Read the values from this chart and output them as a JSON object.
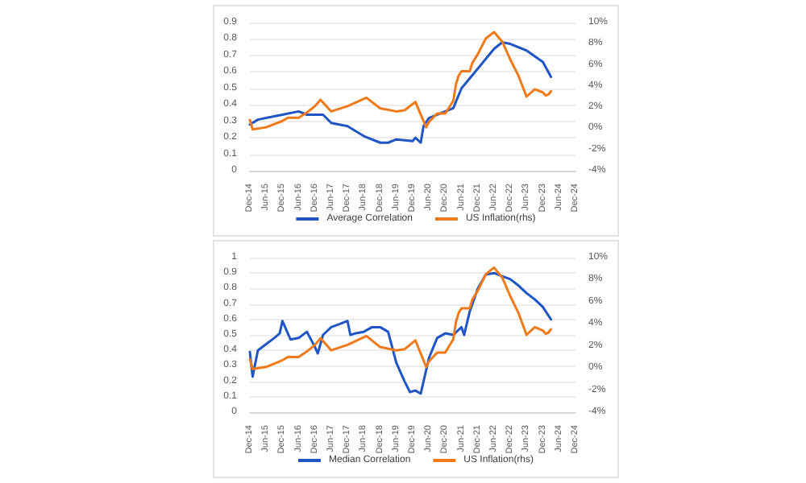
{
  "chart_data": [
    {
      "type": "line",
      "xlim": [
        "2014-12",
        "2024-12"
      ],
      "xticks": [
        {
          "value": "2014-12",
          "label": "Dec-14"
        },
        {
          "value": "2015-06",
          "label": "Jun-15"
        },
        {
          "value": "2015-12",
          "label": "Dec-15"
        },
        {
          "value": "2016-06",
          "label": "Jun-16"
        },
        {
          "value": "2016-12",
          "label": "Dec-16"
        },
        {
          "value": "2017-06",
          "label": "Jun-17"
        },
        {
          "value": "2017-12",
          "label": "Dec-17"
        },
        {
          "value": "2018-06",
          "label": "Jun-18"
        },
        {
          "value": "2018-12",
          "label": "Dec-18"
        },
        {
          "value": "2019-06",
          "label": "Jun-19"
        },
        {
          "value": "2019-12",
          "label": "Dec-19"
        },
        {
          "value": "2020-06",
          "label": "Jun-20"
        },
        {
          "value": "2020-12",
          "label": "Dec-20"
        },
        {
          "value": "2021-06",
          "label": "Jun-21"
        },
        {
          "value": "2021-12",
          "label": "Dec-21"
        },
        {
          "value": "2022-06",
          "label": "Jun-22"
        },
        {
          "value": "2022-12",
          "label": "Dec-22"
        },
        {
          "value": "2023-06",
          "label": "Jun-23"
        },
        {
          "value": "2023-12",
          "label": "Dec-23"
        },
        {
          "value": "2024-06",
          "label": "Jun-24"
        },
        {
          "value": "2024-12",
          "label": "Dec-24"
        }
      ],
      "ylim": [
        0,
        0.9
      ],
      "yticks": [
        0,
        0.1,
        0.2,
        0.3,
        0.4,
        0.5,
        0.6,
        0.7,
        0.8,
        0.9
      ],
      "y2lim": [
        -4,
        10
      ],
      "y2ticks": [
        {
          "value": -4,
          "label": "-4%"
        },
        {
          "value": -2,
          "label": "-2%"
        },
        {
          "value": 0,
          "label": "0%"
        },
        {
          "value": 2,
          "label": "2%"
        },
        {
          "value": 4,
          "label": "4%"
        },
        {
          "value": 6,
          "label": "6%"
        },
        {
          "value": 8,
          "label": "8%"
        },
        {
          "value": 10,
          "label": "10%"
        }
      ],
      "grid": "y",
      "legend": "bottom",
      "marker": "none",
      "line_style": "solid",
      "series": [
        {
          "name": "Average Correlation",
          "color": "#1f55c4",
          "x": [
            "2014-12",
            "2015-03",
            "2015-06",
            "2015-12",
            "2016-06",
            "2016-09",
            "2016-12",
            "2017-03",
            "2017-06",
            "2017-12",
            "2018-06",
            "2018-12",
            "2019-03",
            "2019-06",
            "2019-12",
            "2020-01",
            "2020-03",
            "2020-04",
            "2020-06",
            "2020-12",
            "2021-03",
            "2021-06",
            "2021-12",
            "2022-06",
            "2022-09",
            "2022-12",
            "2023-06",
            "2023-12",
            "2024-03"
          ],
          "values": [
            0.28,
            0.31,
            0.32,
            0.34,
            0.36,
            0.34,
            0.34,
            0.34,
            0.29,
            0.27,
            0.21,
            0.17,
            0.17,
            0.19,
            0.18,
            0.2,
            0.17,
            0.27,
            0.32,
            0.36,
            0.38,
            0.5,
            0.62,
            0.74,
            0.78,
            0.77,
            0.73,
            0.66,
            0.57
          ]
        },
        {
          "name": "US Inflation(rhs)",
          "color": "#f07a1a",
          "axis": "y2",
          "x": [
            "2014-12",
            "2015-01",
            "2015-06",
            "2015-12",
            "2016-02",
            "2016-06",
            "2016-09",
            "2016-12",
            "2017-02",
            "2017-06",
            "2017-12",
            "2018-07",
            "2018-12",
            "2019-06",
            "2019-09",
            "2019-12",
            "2020-01",
            "2020-05",
            "2020-06",
            "2020-09",
            "2020-12",
            "2021-03",
            "2021-04",
            "2021-05",
            "2021-06",
            "2021-09",
            "2021-10",
            "2021-12",
            "2022-03",
            "2022-06",
            "2022-09",
            "2022-12",
            "2023-03",
            "2023-06",
            "2023-09",
            "2023-12",
            "2024-01",
            "2024-02",
            "2024-03"
          ],
          "values": [
            0.8,
            -0.1,
            0.1,
            0.7,
            1.0,
            1.0,
            1.5,
            2.1,
            2.7,
            1.6,
            2.1,
            2.9,
            1.9,
            1.6,
            1.7,
            2.3,
            2.5,
            0.1,
            0.6,
            1.4,
            1.4,
            2.6,
            4.2,
            5.0,
            5.4,
            5.4,
            6.2,
            7.0,
            8.5,
            9.1,
            8.2,
            6.5,
            5.0,
            3.0,
            3.7,
            3.4,
            3.1,
            3.2,
            3.5
          ]
        }
      ]
    },
    {
      "type": "line",
      "xlim": [
        "2014-12",
        "2024-12"
      ],
      "xticks": [
        {
          "value": "2014-12",
          "label": "Dec-14"
        },
        {
          "value": "2015-06",
          "label": "Jun-15"
        },
        {
          "value": "2015-12",
          "label": "Dec-15"
        },
        {
          "value": "2016-06",
          "label": "Jun-16"
        },
        {
          "value": "2016-12",
          "label": "Dec-16"
        },
        {
          "value": "2017-06",
          "label": "Jun-17"
        },
        {
          "value": "2017-12",
          "label": "Dec-17"
        },
        {
          "value": "2018-06",
          "label": "Jun-18"
        },
        {
          "value": "2018-12",
          "label": "Dec-18"
        },
        {
          "value": "2019-06",
          "label": "Jun-19"
        },
        {
          "value": "2019-12",
          "label": "Dec-19"
        },
        {
          "value": "2020-06",
          "label": "Jun-20"
        },
        {
          "value": "2020-12",
          "label": "Dec-20"
        },
        {
          "value": "2021-06",
          "label": "Jun-21"
        },
        {
          "value": "2021-12",
          "label": "Dec-21"
        },
        {
          "value": "2022-06",
          "label": "Jun-22"
        },
        {
          "value": "2022-12",
          "label": "Dec-22"
        },
        {
          "value": "2023-06",
          "label": "Jun-23"
        },
        {
          "value": "2023-12",
          "label": "Dec-23"
        },
        {
          "value": "2024-06",
          "label": "Jun-24"
        },
        {
          "value": "2024-12",
          "label": "Dec-24"
        }
      ],
      "ylim": [
        0,
        1
      ],
      "yticks": [
        0,
        0.1,
        0.2,
        0.3,
        0.4,
        0.5,
        0.6,
        0.7,
        0.8,
        0.9,
        1
      ],
      "y2lim": [
        -4,
        10
      ],
      "y2ticks": [
        {
          "value": -4,
          "label": "-4%"
        },
        {
          "value": -2,
          "label": "-2%"
        },
        {
          "value": 0,
          "label": "0%"
        },
        {
          "value": 2,
          "label": "2%"
        },
        {
          "value": 4,
          "label": "4%"
        },
        {
          "value": 6,
          "label": "6%"
        },
        {
          "value": 8,
          "label": "8%"
        },
        {
          "value": 10,
          "label": "10%"
        }
      ],
      "grid": "y",
      "legend": "bottom",
      "marker": "none",
      "line_style": "solid",
      "series": [
        {
          "name": "Median Correlation",
          "color": "#1f55c4",
          "x": [
            "2014-12",
            "2015-01",
            "2015-03",
            "2015-06",
            "2015-09",
            "2015-11",
            "2015-12",
            "2016-03",
            "2016-06",
            "2016-09",
            "2016-12",
            "2017-01",
            "2017-03",
            "2017-06",
            "2017-09",
            "2017-12",
            "2018-01",
            "2018-03",
            "2018-06",
            "2018-09",
            "2018-12",
            "2019-03",
            "2019-06",
            "2019-09",
            "2019-11",
            "2020-01",
            "2020-03",
            "2020-06",
            "2020-09",
            "2020-12",
            "2021-03",
            "2021-06",
            "2021-07",
            "2021-09",
            "2021-12",
            "2022-03",
            "2022-06",
            "2022-09",
            "2022-12",
            "2023-03",
            "2023-06",
            "2023-09",
            "2023-12",
            "2024-03"
          ],
          "values": [
            0.39,
            0.23,
            0.4,
            0.44,
            0.48,
            0.51,
            0.59,
            0.47,
            0.48,
            0.52,
            0.42,
            0.38,
            0.5,
            0.55,
            0.57,
            0.59,
            0.5,
            0.51,
            0.52,
            0.55,
            0.55,
            0.52,
            0.32,
            0.2,
            0.13,
            0.14,
            0.12,
            0.35,
            0.48,
            0.51,
            0.5,
            0.55,
            0.5,
            0.65,
            0.8,
            0.89,
            0.9,
            0.88,
            0.86,
            0.82,
            0.77,
            0.73,
            0.68,
            0.6
          ]
        },
        {
          "name": "US Inflation(rhs)",
          "color": "#f07a1a",
          "axis": "y2",
          "x": [
            "2014-12",
            "2015-01",
            "2015-06",
            "2015-12",
            "2016-02",
            "2016-06",
            "2016-09",
            "2016-12",
            "2017-02",
            "2017-06",
            "2017-12",
            "2018-07",
            "2018-12",
            "2019-06",
            "2019-09",
            "2019-12",
            "2020-01",
            "2020-05",
            "2020-06",
            "2020-09",
            "2020-12",
            "2021-03",
            "2021-04",
            "2021-05",
            "2021-06",
            "2021-09",
            "2021-10",
            "2021-12",
            "2022-03",
            "2022-06",
            "2022-09",
            "2022-12",
            "2023-03",
            "2023-06",
            "2023-09",
            "2023-12",
            "2024-01",
            "2024-02",
            "2024-03"
          ],
          "values": [
            0.8,
            -0.1,
            0.1,
            0.7,
            1.0,
            1.0,
            1.5,
            2.1,
            2.7,
            1.6,
            2.1,
            2.9,
            1.9,
            1.6,
            1.7,
            2.3,
            2.5,
            0.1,
            0.6,
            1.4,
            1.4,
            2.6,
            4.2,
            5.0,
            5.4,
            5.4,
            6.2,
            7.0,
            8.5,
            9.1,
            8.2,
            6.5,
            5.0,
            3.0,
            3.7,
            3.4,
            3.1,
            3.2,
            3.5
          ]
        }
      ]
    }
  ]
}
